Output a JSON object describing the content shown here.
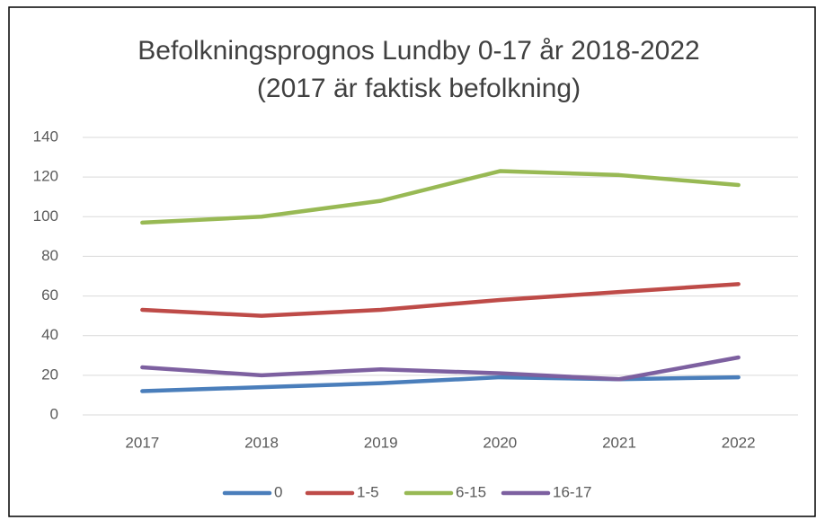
{
  "chart_data": {
    "type": "line",
    "title": "Befolkningsprognos Lundby 0-17 år 2018-2022",
    "subtitle": "(2017 är faktisk befolkning)",
    "categories": [
      "2017",
      "2018",
      "2019",
      "2020",
      "2021",
      "2022"
    ],
    "series": [
      {
        "name": "0",
        "color": "#4a7ebb",
        "values": [
          12,
          14,
          16,
          19,
          18,
          19
        ]
      },
      {
        "name": "1-5",
        "color": "#be4b48",
        "values": [
          53,
          50,
          53,
          58,
          62,
          66
        ]
      },
      {
        "name": "6-15",
        "color": "#98b954",
        "values": [
          97,
          100,
          108,
          123,
          121,
          116
        ]
      },
      {
        "name": "16-17",
        "color": "#7d60a0",
        "values": [
          24,
          20,
          23,
          21,
          18,
          29
        ]
      }
    ],
    "ylim": [
      0,
      140
    ],
    "yticks": [
      0,
      20,
      40,
      60,
      80,
      100,
      120,
      140
    ],
    "grid": true,
    "legend": "bottom"
  }
}
